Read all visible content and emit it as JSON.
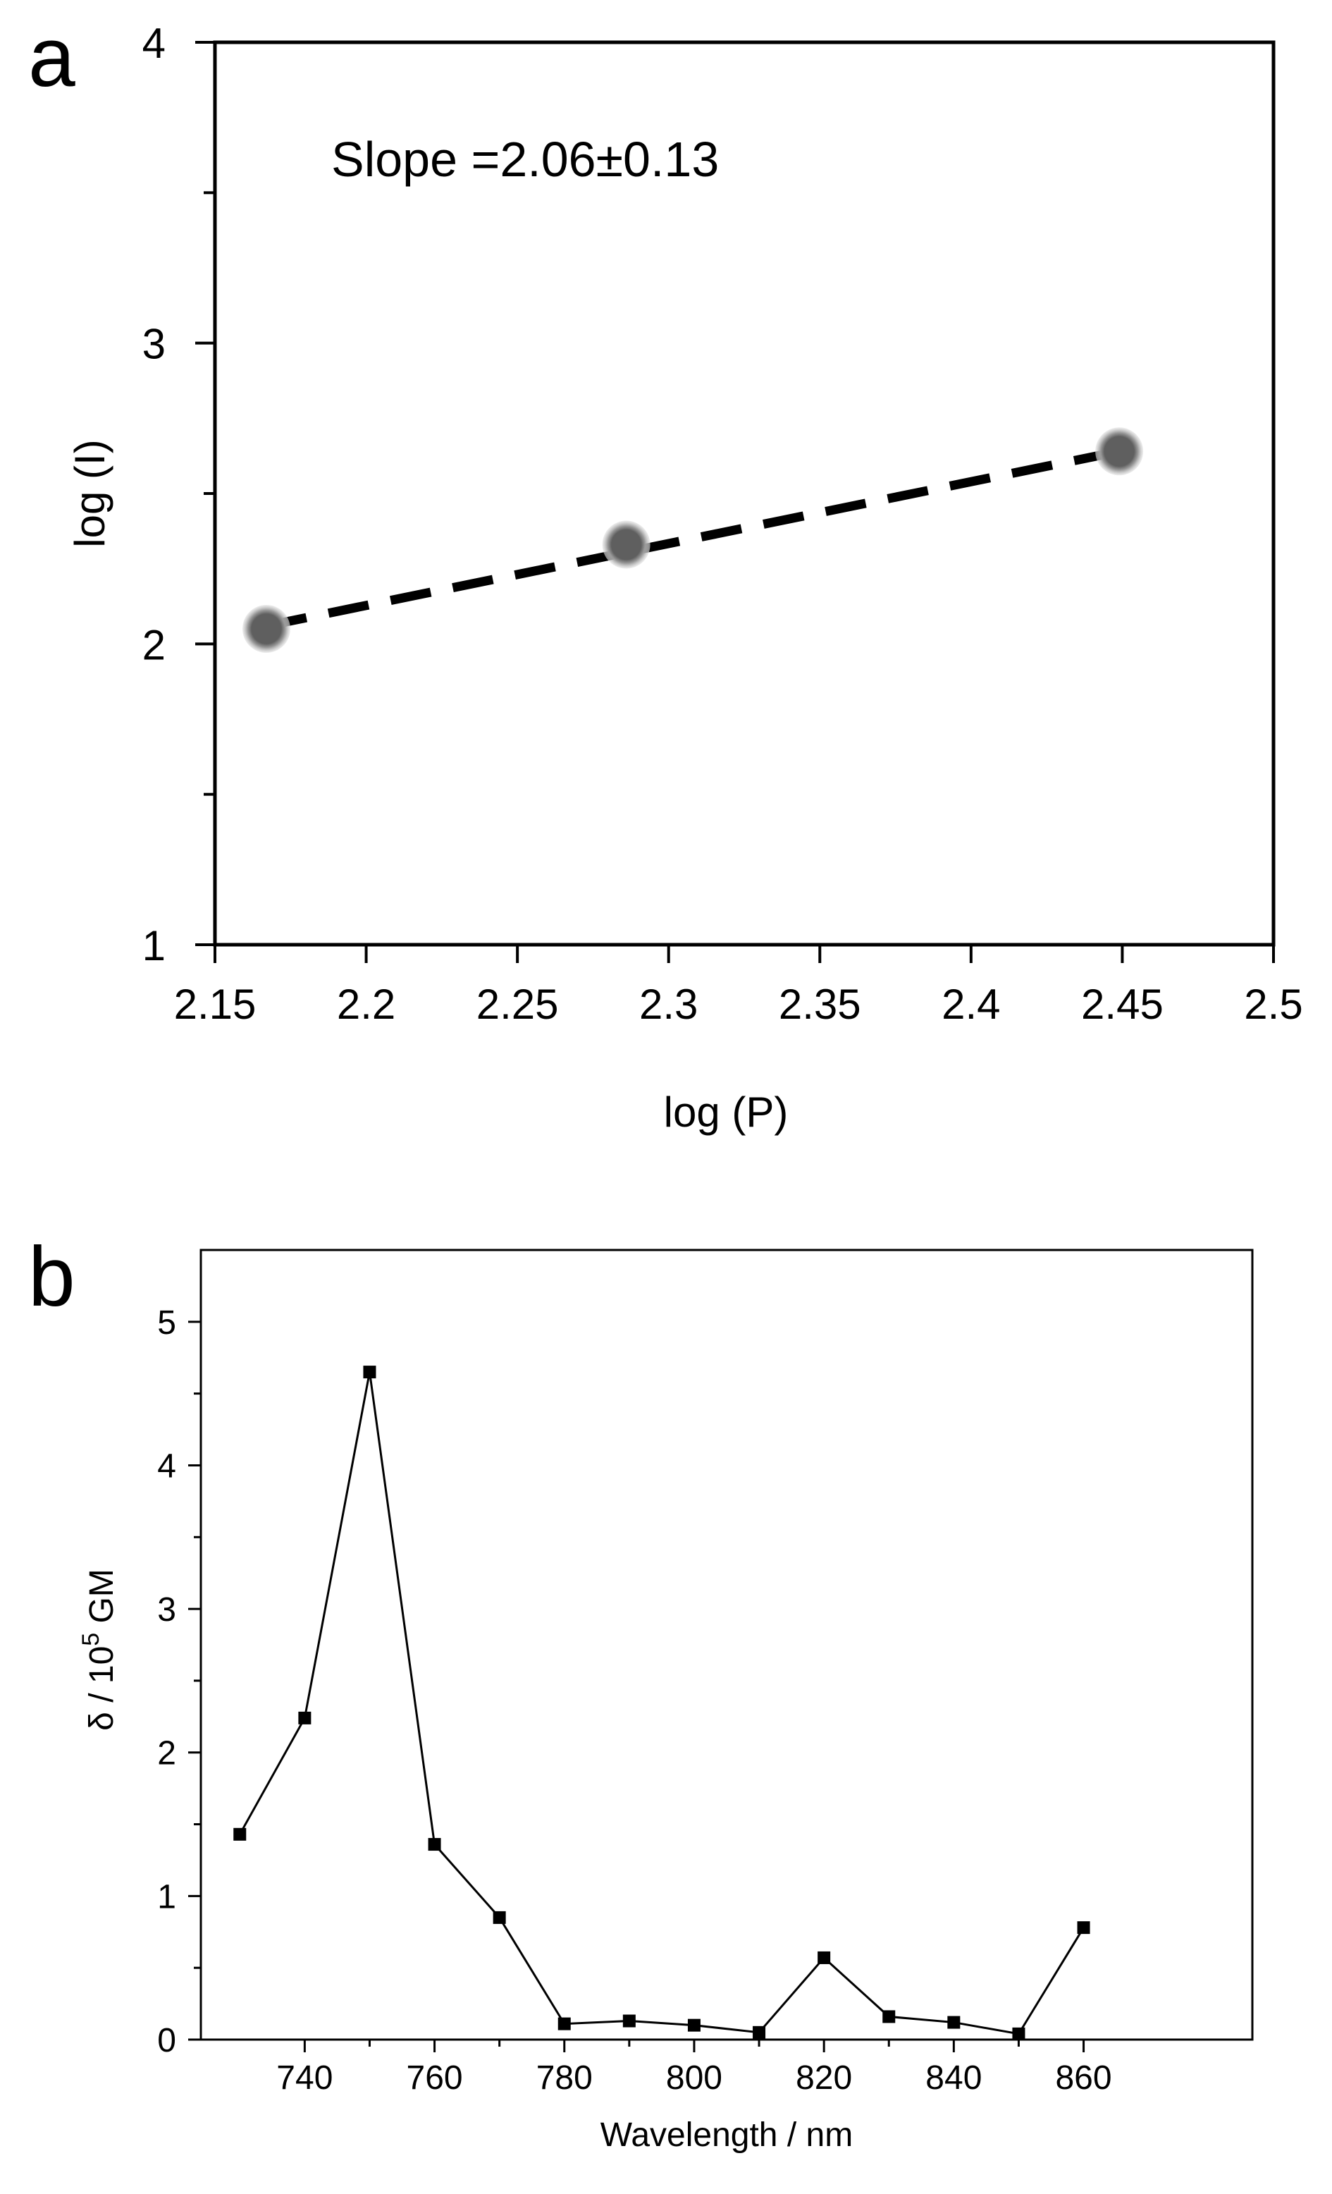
{
  "figure": {
    "panels": [
      "a",
      "b"
    ]
  },
  "chart_data": [
    {
      "panel": "a",
      "type": "scatter",
      "title": "",
      "xlabel": "log (P)",
      "ylabel": "log (I)",
      "xlim": [
        2.15,
        2.5
      ],
      "ylim": [
        1,
        4
      ],
      "xticks": [
        "2.15",
        "2.2",
        "2.25",
        "2.3",
        "2.35",
        "2.4",
        "2.45",
        "2.5"
      ],
      "yticks": [
        "1",
        "2",
        "3",
        "4"
      ],
      "annotation": "Slope =2.06±0.13",
      "points": [
        {
          "x": 2.167,
          "y": 2.05
        },
        {
          "x": 2.286,
          "y": 2.33
        },
        {
          "x": 2.449,
          "y": 2.64
        }
      ],
      "fit_line": {
        "style": "dashed",
        "x": [
          2.167,
          2.449
        ],
        "y": [
          2.06,
          2.64
        ]
      },
      "colors": {
        "points": "#5f5f5f",
        "halo": "#c8c8c8",
        "fit": "#000000"
      }
    },
    {
      "panel": "b",
      "type": "line",
      "title": "",
      "xlabel": "Wavelength / nm",
      "ylabel_main": "δ  / 10",
      "ylabel_sup": "5",
      "ylabel_tail": " GM",
      "xlim": [
        724,
        886
      ],
      "ylim": [
        0,
        5.5
      ],
      "xticks": [
        "740",
        "760",
        "780",
        "800",
        "820",
        "840",
        "860"
      ],
      "yticks": [
        "0",
        "1",
        "2",
        "3",
        "4",
        "5"
      ],
      "series": [
        {
          "name": "δ",
          "x": [
            730,
            740,
            750,
            760,
            770,
            780,
            790,
            800,
            810,
            820,
            830,
            840,
            850,
            860
          ],
          "y": [
            1.43,
            2.24,
            4.65,
            1.36,
            0.85,
            0.11,
            0.13,
            0.1,
            0.05,
            0.57,
            0.16,
            0.12,
            0.04,
            0.78
          ]
        }
      ],
      "colors": {
        "line": "#000000",
        "marker": "#000000"
      }
    }
  ]
}
